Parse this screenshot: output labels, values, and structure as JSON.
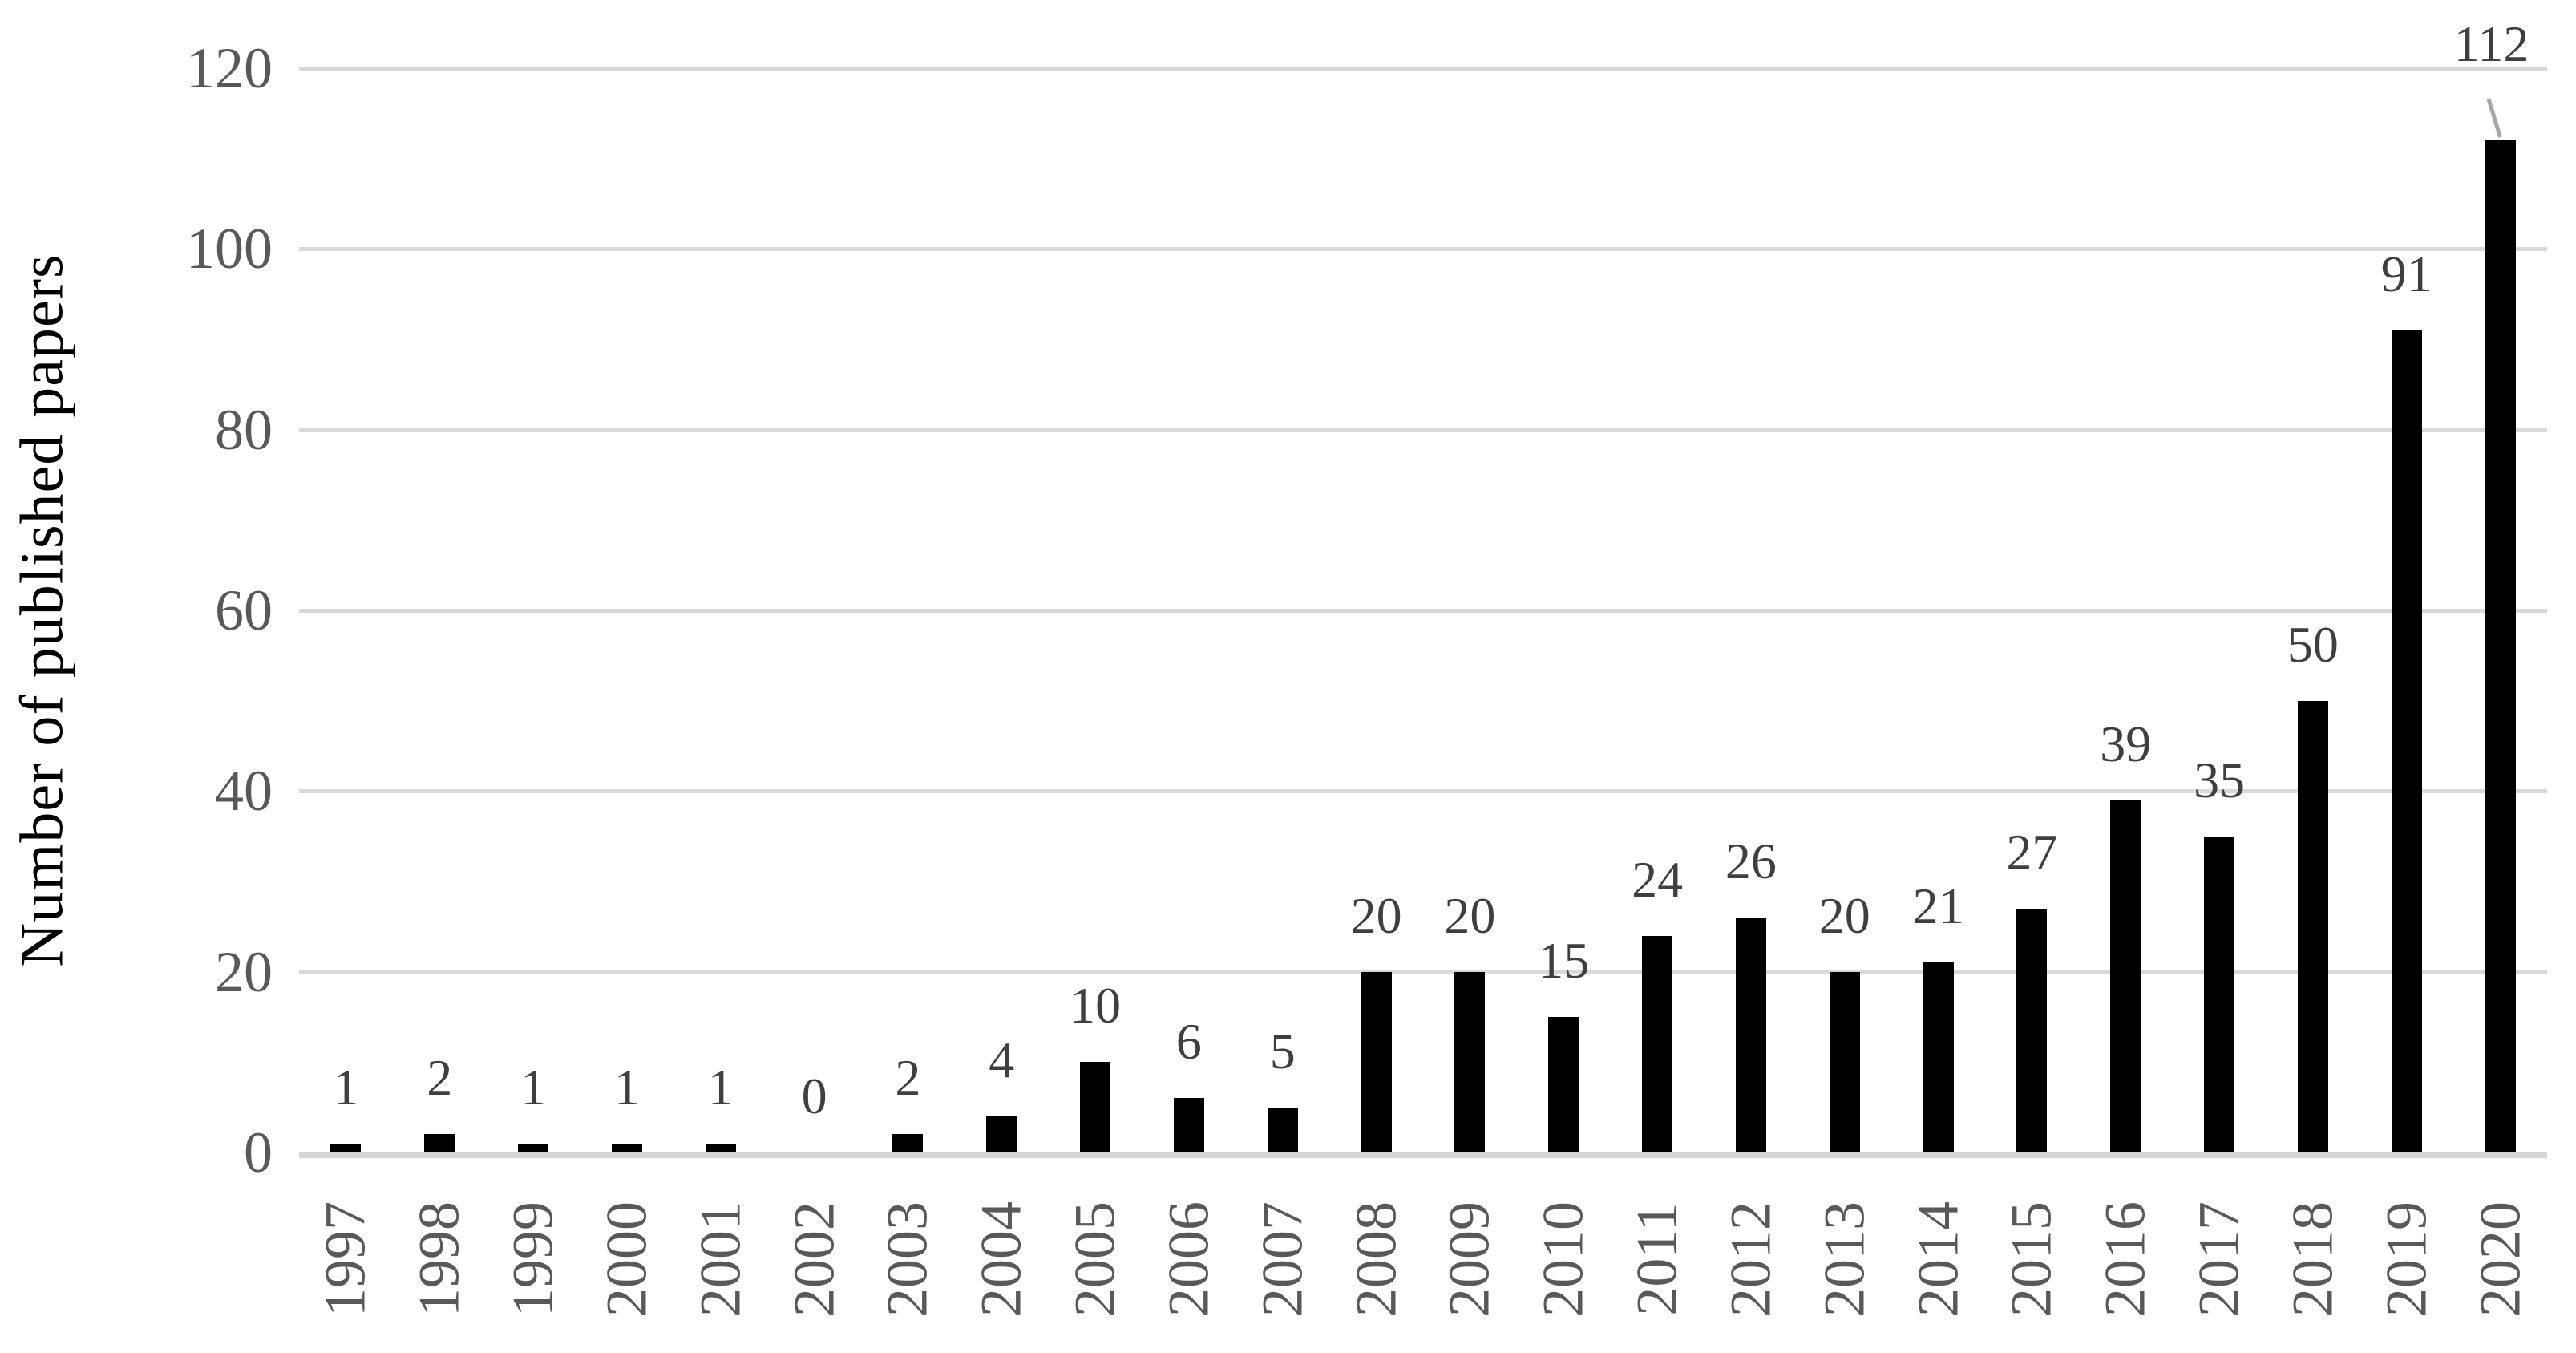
{
  "chart_data": {
    "type": "bar",
    "title": "",
    "xlabel": "",
    "ylabel": "Number of published papers",
    "categories": [
      "1997",
      "1998",
      "1999",
      "2000",
      "2001",
      "2002",
      "2003",
      "2004",
      "2005",
      "2006",
      "2007",
      "2008",
      "2009",
      "2010",
      "2011",
      "2012",
      "2013",
      "2014",
      "2015",
      "2016",
      "2017",
      "2018",
      "2019",
      "2020"
    ],
    "values": [
      1,
      2,
      1,
      1,
      1,
      0,
      2,
      4,
      10,
      6,
      5,
      20,
      20,
      15,
      24,
      26,
      20,
      21,
      27,
      39,
      35,
      50,
      91,
      112
    ],
    "data_labels": [
      "1",
      "2",
      "1",
      "1",
      "1",
      "0",
      "2",
      "4",
      "10",
      "6",
      "5",
      "20",
      "20",
      "15",
      "24",
      "26",
      "20",
      "21",
      "27",
      "39",
      "35",
      "50",
      "91",
      "112"
    ],
    "ylim": [
      0,
      120
    ],
    "yticks": [
      "0",
      "20",
      "40",
      "60",
      "80",
      "100",
      "120"
    ],
    "grid": "horizontal-only",
    "legend": "none",
    "callout": {
      "category": "2020",
      "label": "112",
      "style": "data label moved above chart top with gray leader line to bar"
    }
  },
  "style": {
    "bar_color": "#000000",
    "gridline_color": "#d9d9d9",
    "axis_line_color": "#d6d6d6",
    "tick_label_color": "#595959",
    "data_label_color": "#3f3f3f",
    "axis_title_color": "#000000",
    "leader_line_color": "#a6a6a6",
    "background_color": "#ffffff"
  }
}
